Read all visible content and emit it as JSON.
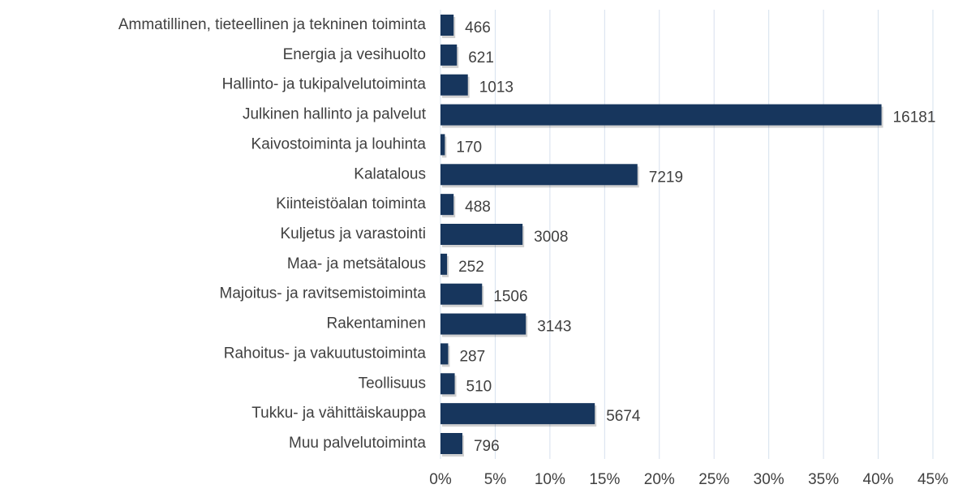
{
  "chart_data": {
    "type": "bar",
    "orientation": "horizontal",
    "categories": [
      "Ammatillinen, tieteellinen ja tekninen toiminta",
      "Energia ja vesihuolto",
      "Hallinto- ja tukipalvelutoiminta",
      "Julkinen hallinto ja palvelut",
      "Kaivostoiminta ja louhinta",
      "Kalatalous",
      "Kiinteistöalan toiminta",
      "Kuljetus ja varastointi",
      "Maa- ja metsätalous",
      "Majoitus- ja ravitsemistoiminta",
      "Rakentaminen",
      "Rahoitus- ja vakuutustoiminta",
      "Teollisuus",
      "Tukku- ja vähittäiskauppa",
      "Muu palvelutoiminta"
    ],
    "values": [
      1.2,
      1.5,
      2.5,
      40.3,
      0.4,
      18.0,
      1.2,
      7.5,
      0.6,
      3.8,
      7.8,
      0.7,
      1.3,
      14.1,
      2.0
    ],
    "counts": [
      466,
      621,
      1013,
      16181,
      170,
      7219,
      488,
      3008,
      252,
      1506,
      3143,
      287,
      510,
      5674,
      796
    ],
    "color": "#17365d",
    "xlim": [
      0,
      45
    ],
    "xticks": [
      {
        "value": 0,
        "label": "0%"
      },
      {
        "value": 5,
        "label": "5%"
      },
      {
        "value": 10,
        "label": "10%"
      },
      {
        "value": 15,
        "label": "15%"
      },
      {
        "value": 20,
        "label": "20%"
      },
      {
        "value": 25,
        "label": "25%"
      },
      {
        "value": 30,
        "label": "30%"
      },
      {
        "value": 35,
        "label": "35%"
      },
      {
        "value": 40,
        "label": "40%"
      },
      {
        "value": 45,
        "label": "45%"
      }
    ],
    "grid": true
  }
}
